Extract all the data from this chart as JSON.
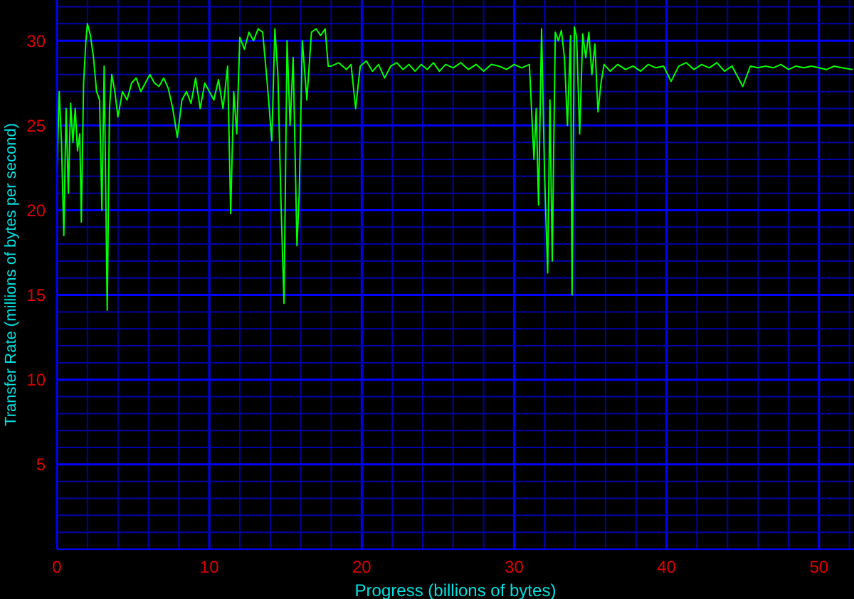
{
  "chart_data": {
    "type": "line",
    "xlabel": "Progress (billions of bytes)",
    "ylabel": "Transfer Rate (millions of bytes per second)",
    "xlim": [
      0,
      52.3
    ],
    "ylim": [
      0,
      32.4
    ],
    "xticks": [
      0,
      {
        "value": 2,
        "label": null
      },
      {
        "value": 4,
        "label": null
      },
      {
        "value": 6,
        "label": null
      },
      {
        "value": 8,
        "label": null
      },
      10,
      {
        "value": 12,
        "label": null
      },
      {
        "value": 14,
        "label": null
      },
      {
        "value": 16,
        "label": null
      },
      {
        "value": 18,
        "label": null
      },
      20,
      {
        "value": 22,
        "label": null
      },
      {
        "value": 24,
        "label": null
      },
      {
        "value": 26,
        "label": null
      },
      {
        "value": 28,
        "label": null
      },
      30,
      {
        "value": 32,
        "label": null
      },
      {
        "value": 34,
        "label": null
      },
      {
        "value": 36,
        "label": null
      },
      {
        "value": 38,
        "label": null
      },
      40,
      {
        "value": 42,
        "label": null
      },
      {
        "value": 44,
        "label": null
      },
      {
        "value": 46,
        "label": null
      },
      {
        "value": 48,
        "label": null
      },
      50,
      {
        "value": 52,
        "label": null
      }
    ],
    "yticks": [
      {
        "value": 0,
        "label": null
      },
      {
        "value": 1,
        "label": null
      },
      {
        "value": 2,
        "label": null
      },
      {
        "value": 3,
        "label": null
      },
      {
        "value": 4,
        "label": null
      },
      5,
      {
        "value": 6,
        "label": null
      },
      {
        "value": 7,
        "label": null
      },
      {
        "value": 8,
        "label": null
      },
      {
        "value": 9,
        "label": null
      },
      10,
      {
        "value": 11,
        "label": null
      },
      {
        "value": 12,
        "label": null
      },
      {
        "value": 13,
        "label": null
      },
      {
        "value": 14,
        "label": null
      },
      15,
      {
        "value": 16,
        "label": null
      },
      {
        "value": 17,
        "label": null
      },
      {
        "value": 18,
        "label": null
      },
      {
        "value": 19,
        "label": null
      },
      20,
      {
        "value": 21,
        "label": null
      },
      {
        "value": 22,
        "label": null
      },
      {
        "value": 23,
        "label": null
      },
      {
        "value": 24,
        "label": null
      },
      25,
      {
        "value": 26,
        "label": null
      },
      {
        "value": 27,
        "label": null
      },
      {
        "value": 28,
        "label": null
      },
      {
        "value": 29,
        "label": null
      },
      30,
      {
        "value": 31,
        "label": null
      },
      {
        "value": 32,
        "label": null
      }
    ],
    "grid": true,
    "marker": "none",
    "series": [
      {
        "color": "#00ff00",
        "x": [
          0,
          0.15,
          0.3,
          0.45,
          0.6,
          0.75,
          0.9,
          1.05,
          1.2,
          1.35,
          1.5,
          1.6,
          1.75,
          1.9,
          2.0,
          2.2,
          2.4,
          2.6,
          2.8,
          2.95,
          3.1,
          3.3,
          3.45,
          3.6,
          3.8,
          4.0,
          4.3,
          4.6,
          4.9,
          5.2,
          5.5,
          5.8,
          6.1,
          6.4,
          6.7,
          7.0,
          7.3,
          7.6,
          7.9,
          8.2,
          8.5,
          8.8,
          9.1,
          9.4,
          9.7,
          10.0,
          10.3,
          10.6,
          10.9,
          11.2,
          11.4,
          11.6,
          11.8,
          12.0,
          12.3,
          12.6,
          12.9,
          13.2,
          13.5,
          13.8,
          14.1,
          14.3,
          14.5,
          14.7,
          14.9,
          15.1,
          15.3,
          15.5,
          15.75,
          15.9,
          16.1,
          16.4,
          16.7,
          17.0,
          17.3,
          17.6,
          17.8,
          18.0,
          18.5,
          19.0,
          19.3,
          19.6,
          19.9,
          20.3,
          20.7,
          21.1,
          21.5,
          21.9,
          22.3,
          22.7,
          23.1,
          23.5,
          23.9,
          24.3,
          24.7,
          25.1,
          25.5,
          26.0,
          26.5,
          27.0,
          27.5,
          28.0,
          28.5,
          29.0,
          29.5,
          30.0,
          30.5,
          31.0,
          31.3,
          31.45,
          31.6,
          31.8,
          32.0,
          32.2,
          32.35,
          32.5,
          32.7,
          32.9,
          33.1,
          33.3,
          33.5,
          33.7,
          33.8,
          33.95,
          34.1,
          34.3,
          34.5,
          34.7,
          34.9,
          35.1,
          35.3,
          35.5,
          35.7,
          35.9,
          36.3,
          36.8,
          37.3,
          37.8,
          38.3,
          38.8,
          39.3,
          39.8,
          40.3,
          40.8,
          41.3,
          41.8,
          42.3,
          42.8,
          43.3,
          43.8,
          44.3,
          45.0,
          45.5,
          46.0,
          46.5,
          47.0,
          47.5,
          48.0,
          48.5,
          49.0,
          49.5,
          50.0,
          50.5,
          51.0,
          51.5,
          52.2
        ],
        "values": [
          22.3,
          27,
          24,
          18.5,
          26,
          21,
          26.3,
          24,
          26,
          23.5,
          24.5,
          19.3,
          27.5,
          30,
          31,
          30.3,
          29,
          27,
          26.5,
          20,
          28.5,
          14.1,
          26,
          28,
          27,
          25.5,
          27,
          26.5,
          27.5,
          27.8,
          27,
          27.5,
          28,
          27.5,
          27.3,
          27.8,
          27.2,
          26,
          24.3,
          26.5,
          27,
          26.3,
          27.8,
          26,
          27.5,
          27,
          26.5,
          27.7,
          26,
          28.5,
          19.8,
          27,
          24.5,
          30.2,
          29.5,
          30.5,
          30,
          30.7,
          30.5,
          27.5,
          24.1,
          30.7,
          28,
          20.5,
          14.5,
          30,
          25,
          29,
          17.9,
          21,
          30,
          26.5,
          30.5,
          30.7,
          30.3,
          30.7,
          28.5,
          28.5,
          28.7,
          28.3,
          28.6,
          26,
          28.5,
          28.8,
          28.2,
          28.6,
          27.8,
          28.5,
          28.7,
          28.3,
          28.6,
          28.2,
          28.6,
          28.3,
          28.7,
          28.2,
          28.6,
          28.4,
          28.7,
          28.3,
          28.6,
          28.2,
          28.6,
          28.5,
          28.3,
          28.6,
          28.4,
          28.6,
          23,
          26,
          20.3,
          30.7,
          22,
          16.3,
          26.5,
          17,
          30.5,
          30,
          30.6,
          29,
          25,
          30.3,
          15,
          30.8,
          30.2,
          24.5,
          30.4,
          29,
          30.5,
          28,
          29.8,
          25.8,
          27.5,
          28.6,
          28.2,
          28.6,
          28.3,
          28.5,
          28.2,
          28.6,
          28.4,
          28.5,
          27.6,
          28.5,
          28.7,
          28.3,
          28.6,
          28.4,
          28.7,
          28.2,
          28.5,
          27.3,
          28.5,
          28.4,
          28.5,
          28.4,
          28.6,
          28.3,
          28.5,
          28.4,
          28.5,
          28.4,
          28.3,
          28.5,
          28.4,
          28.3
        ]
      }
    ]
  }
}
